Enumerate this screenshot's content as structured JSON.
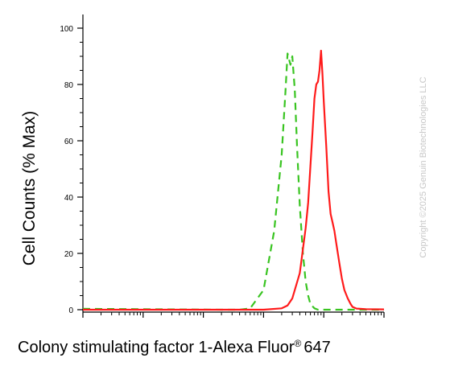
{
  "chart_data": {
    "type": "line",
    "title": "",
    "xlabel": "Colony stimulating factor 1-Alexa Fluor",
    "xlabel_mark": "®",
    "xlabel_suffix": "647",
    "ylabel": "Cell Counts (% Max)",
    "x_scale": "log",
    "xlim": [
      1,
      100000
    ],
    "ylim": [
      0,
      100
    ],
    "y_ticks": [
      0,
      20,
      40,
      60,
      80,
      100
    ],
    "grid": false,
    "legend": "none",
    "series": [
      {
        "color": "#39c421",
        "style": "dashed",
        "x": [
          1,
          200,
          400,
          600,
          1000,
          1500,
          2000,
          2300,
          2500,
          2800,
          3000,
          3300,
          3600,
          4000,
          4500,
          5000,
          5500,
          6000,
          7000,
          8000,
          10000,
          20000,
          100000
        ],
        "y": [
          0.3,
          0,
          0,
          0.5,
          7,
          28,
          55,
          77,
          91,
          87,
          90,
          78,
          58,
          37,
          20,
          10,
          5,
          2,
          0.5,
          0,
          0,
          0,
          0
        ]
      },
      {
        "color": "#ff1a1a",
        "style": "solid",
        "x": [
          1,
          200,
          1000,
          2000,
          2500,
          3000,
          4000,
          5000,
          5500,
          6000,
          6500,
          7000,
          7500,
          8000,
          8500,
          9000,
          9500,
          10000,
          11000,
          12000,
          13000,
          14000,
          15000,
          16000,
          18000,
          20000,
          22000,
          25000,
          28000,
          30000,
          35000,
          40000,
          50000,
          100000
        ],
        "y": [
          0,
          0,
          0,
          0.5,
          1.5,
          4,
          13,
          29,
          38,
          51,
          63,
          75,
          80,
          81,
          85,
          92,
          84,
          74,
          58,
          42,
          34,
          31,
          28,
          24,
          17,
          11,
          7,
          4,
          2,
          1,
          0.4,
          0.3,
          0.2,
          0.1
        ]
      }
    ]
  },
  "watermark": "Copyright ©2025 Genuin Biotechnologies LLC"
}
